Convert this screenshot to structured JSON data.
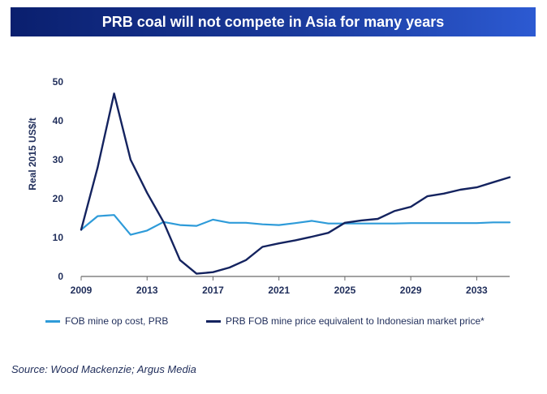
{
  "header": {
    "title": "PRB coal will not compete in Asia for many years"
  },
  "source": "Source: Wood Mackenzie; Argus Media",
  "colors": {
    "light_series": "#2e9bd9",
    "dark_series": "#14235f",
    "title_bg": "#0a1f6e"
  },
  "chart_data": {
    "type": "line",
    "title": "PRB coal will not compete in Asia for many years",
    "xlabel": "",
    "ylabel": "Real 2015 US$/t",
    "xlim": [
      2009,
      2035
    ],
    "ylim": [
      0,
      50
    ],
    "xticks": [
      "2009",
      "2013",
      "2017",
      "2021",
      "2025",
      "2029",
      "2033"
    ],
    "yticks": [
      "0",
      "10",
      "20",
      "30",
      "40",
      "50"
    ],
    "grid": false,
    "legend_position": "bottom",
    "x": [
      2009,
      2010,
      2011,
      2012,
      2013,
      2014,
      2015,
      2016,
      2017,
      2018,
      2019,
      2020,
      2021,
      2022,
      2023,
      2024,
      2025,
      2026,
      2027,
      2028,
      2029,
      2030,
      2031,
      2032,
      2033,
      2034,
      2035
    ],
    "series": [
      {
        "name": "FOB mine op cost, PRB",
        "color": "#2e9bd9",
        "values": [
          12,
          15.5,
          15.8,
          10.7,
          11.8,
          14,
          13.2,
          13,
          14.6,
          13.8,
          13.8,
          13.4,
          13.2,
          13.7,
          14.3,
          13.6,
          13.6,
          13.6,
          13.6,
          13.6,
          13.7,
          13.7,
          13.7,
          13.7,
          13.7,
          13.9,
          13.9
        ]
      },
      {
        "name": "PRB FOB mine price equivalent to Indonesian market price*",
        "color": "#14235f",
        "values": [
          12,
          28,
          47,
          30,
          21.5,
          14,
          4.2,
          0.7,
          1.1,
          2.3,
          4.2,
          7.6,
          8.5,
          9.3,
          10.2,
          11.2,
          13.8,
          14.4,
          14.8,
          16.8,
          17.9,
          20.6,
          21.3,
          22.3,
          22.9,
          24.2,
          25.5
        ]
      }
    ]
  }
}
